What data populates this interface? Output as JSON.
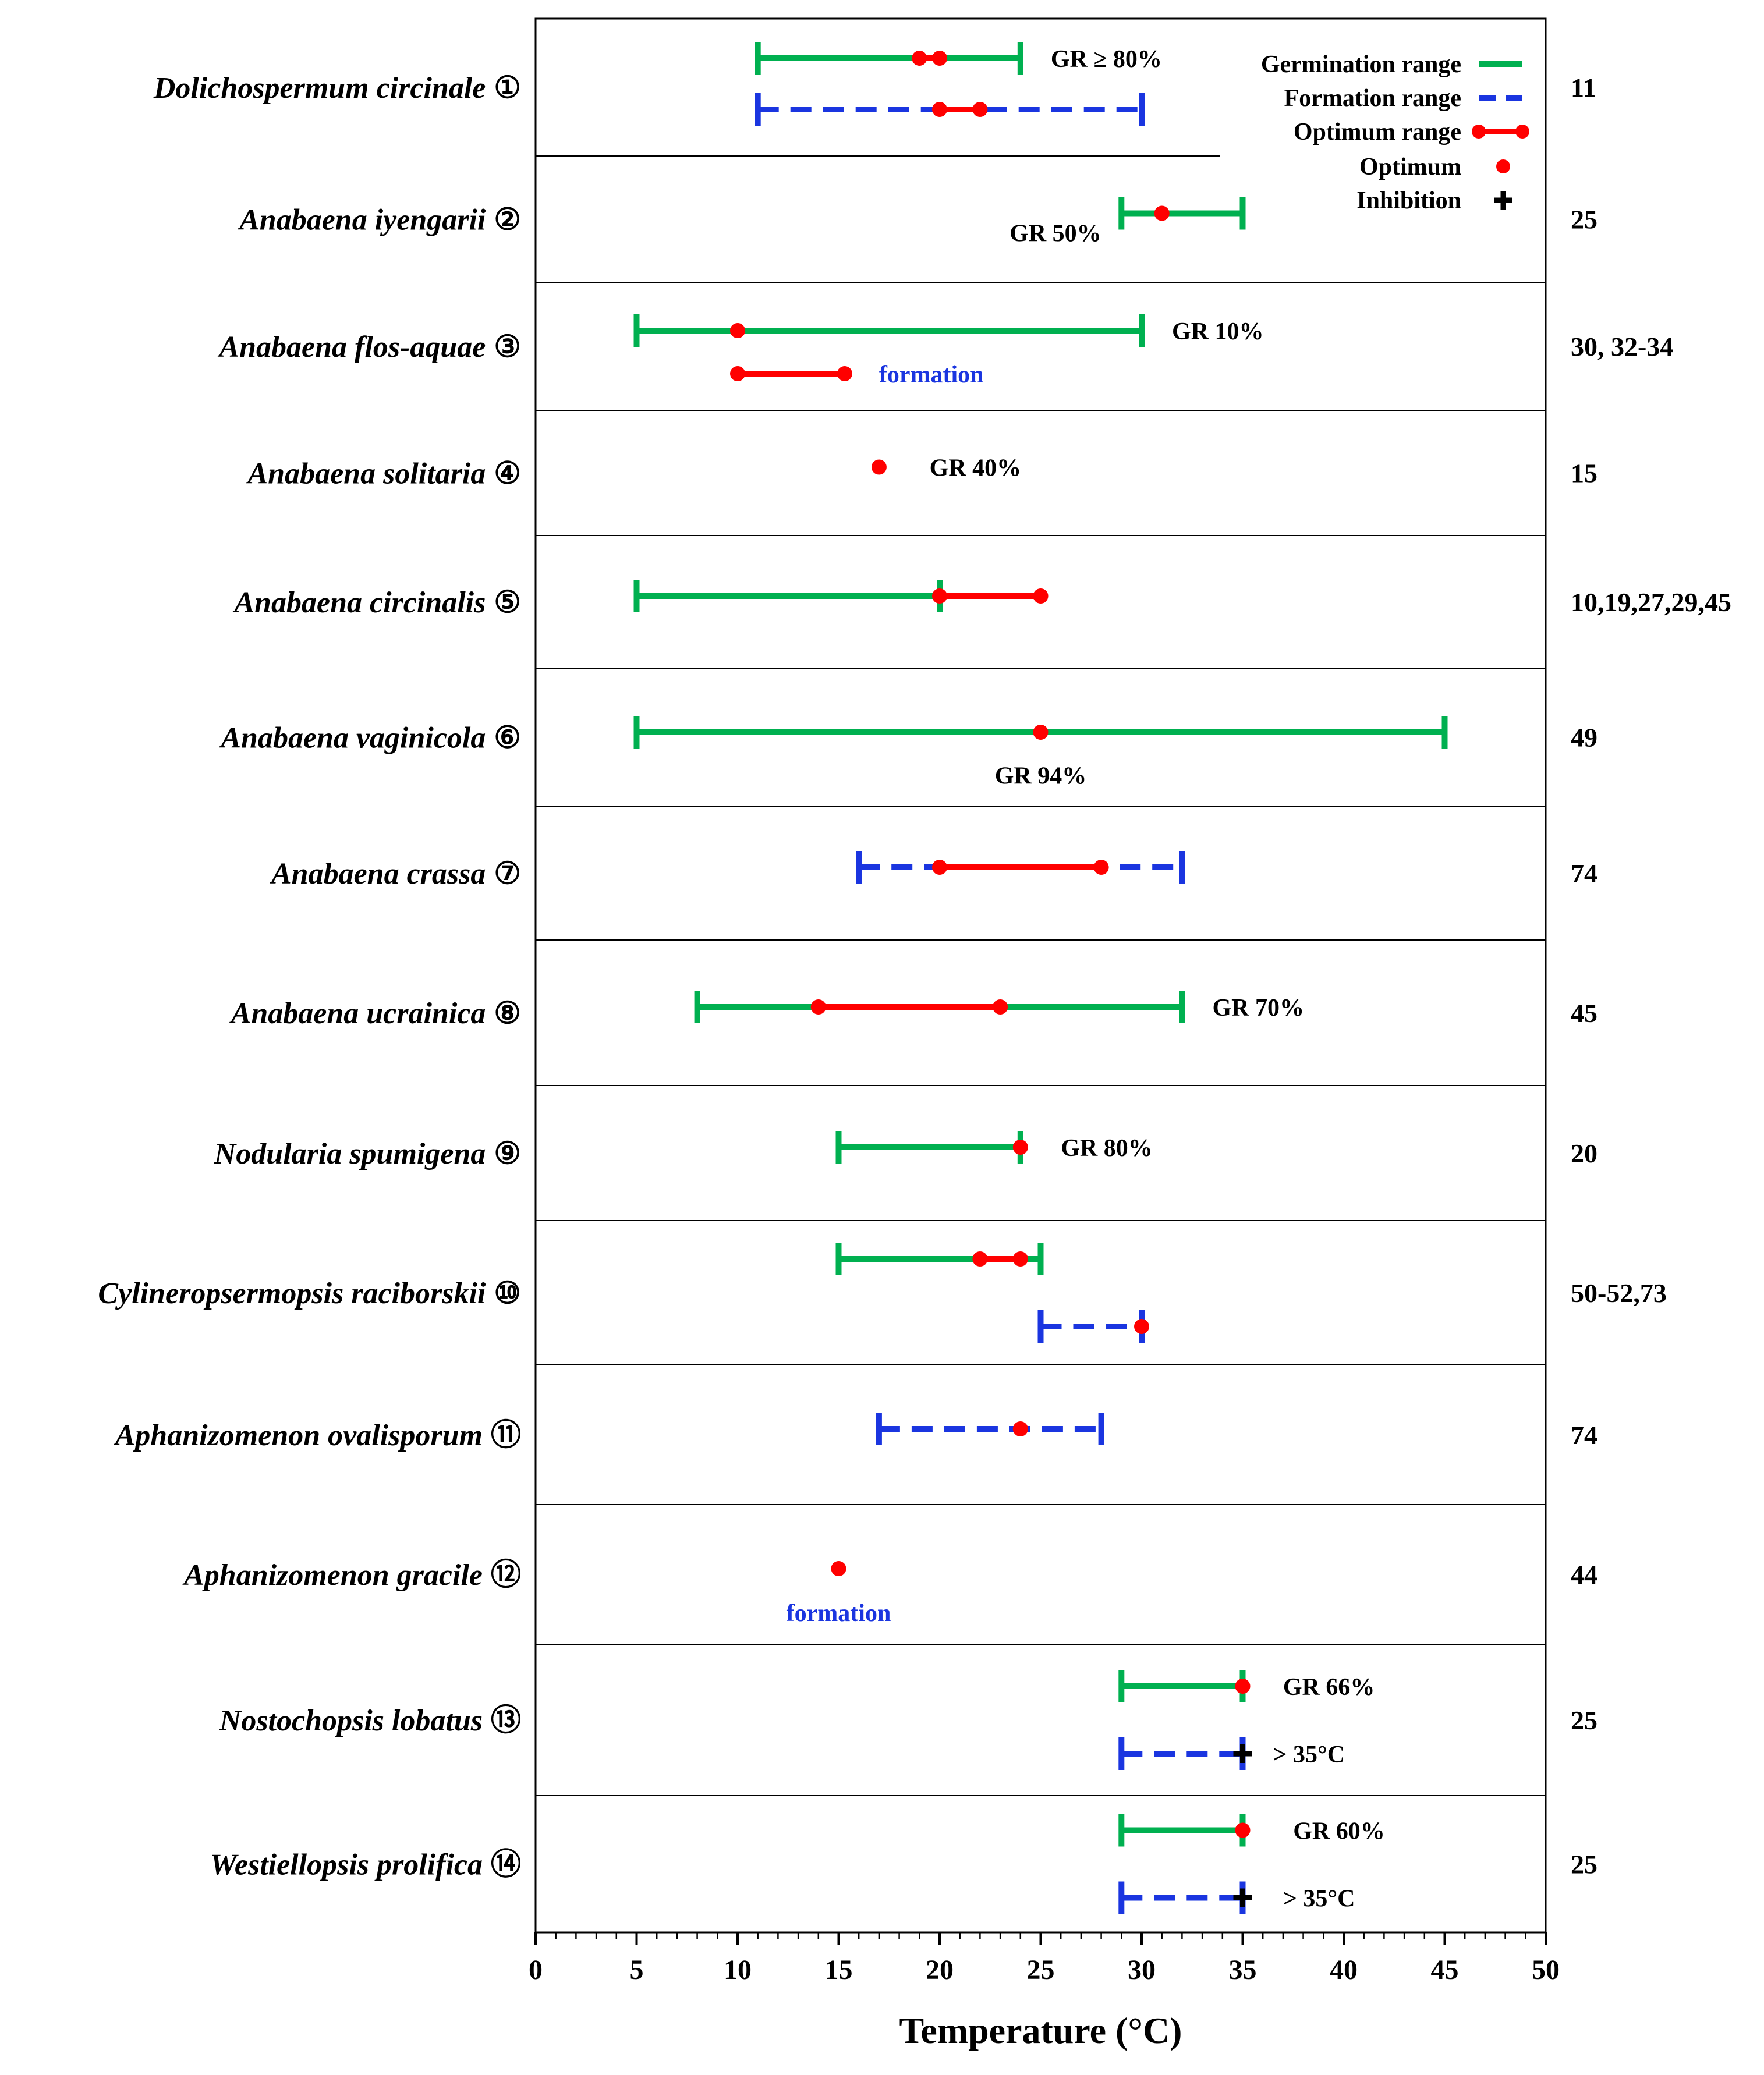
{
  "chart_data": {
    "type": "range",
    "xlabel": "Temperature (°C)",
    "xlim": [
      0,
      50
    ],
    "xticks": [
      0,
      5,
      10,
      15,
      20,
      25,
      30,
      35,
      40,
      45,
      50
    ],
    "xtick_labels": [
      "0",
      "5",
      "10",
      "15",
      "20",
      "25",
      "30",
      "35",
      "40",
      "45",
      "50"
    ],
    "colors": {
      "germination": "#00b050",
      "formation": "#1a35e0",
      "optimum": "#ff0000",
      "inhibition": "#000000"
    },
    "legend": {
      "placement": "top-right",
      "entries": [
        {
          "key": "germination",
          "label": "Germination range"
        },
        {
          "key": "formation",
          "label": "Formation range"
        },
        {
          "key": "optimum_range",
          "label": "Optimum range"
        },
        {
          "key": "optimum",
          "label": "Optimum"
        },
        {
          "key": "inhibition",
          "label": "Inhibition"
        }
      ]
    },
    "rows": [
      {
        "name": "Dolichospermum circinale",
        "marker": "①",
        "refs": "11",
        "germination": [
          11,
          24
        ],
        "formation": [
          11,
          30
        ],
        "optimum_ranges": [
          [
            19,
            20
          ],
          [
            20,
            22
          ]
        ],
        "optimum_points": [],
        "inhibition": [],
        "annotations": [
          {
            "text": "GR ≥ 80%",
            "x": 25.5,
            "line": "germination",
            "anchor": "start"
          }
        ]
      },
      {
        "name": "Anabaena iyengarii",
        "marker": "②",
        "refs": "25",
        "germination": [
          29,
          35
        ],
        "formation": null,
        "optimum_ranges": [],
        "optimum_points": [
          31
        ],
        "inhibition": [],
        "annotations": [
          {
            "text": "GR 50%",
            "x": 28,
            "line": "germination",
            "anchor": "end"
          }
        ]
      },
      {
        "name": "Anabaena flos-aquae",
        "marker": "③",
        "refs": "30, 32-34",
        "germination": [
          5,
          30
        ],
        "formation": null,
        "optimum_ranges": [
          [
            10,
            15.3
          ]
        ],
        "optimum_points": [
          10
        ],
        "inhibition": [],
        "annotations": [
          {
            "text": "GR 10%",
            "x": 31.5,
            "line": "germination",
            "anchor": "start"
          },
          {
            "text": "formation",
            "x": 17,
            "line": "optimum",
            "anchor": "start",
            "style": "formation"
          }
        ]
      },
      {
        "name": "Anabaena solitaria",
        "marker": "④",
        "refs": "15",
        "germination": null,
        "formation": null,
        "optimum_ranges": [],
        "optimum_points": [
          17
        ],
        "inhibition": [],
        "annotations": [
          {
            "text": "GR 40%",
            "x": 19.5,
            "line": "single",
            "anchor": "start"
          }
        ]
      },
      {
        "name": "Anabaena circinalis",
        "marker": "⑤",
        "refs": "10,19,27,29,45",
        "germination": [
          5,
          20
        ],
        "formation": null,
        "optimum_ranges": [
          [
            20,
            25
          ]
        ],
        "optimum_points": [],
        "inhibition": [],
        "annotations": []
      },
      {
        "name": "Anabaena vaginicola",
        "marker": "⑥",
        "refs": "49",
        "germination": [
          5,
          45
        ],
        "formation": null,
        "optimum_ranges": [],
        "optimum_points": [
          25
        ],
        "inhibition": [],
        "annotations": [
          {
            "text": "GR 94%",
            "x": 25,
            "line": "below",
            "anchor": "middle"
          }
        ]
      },
      {
        "name": "Anabaena crassa",
        "marker": "⑦",
        "refs": "74",
        "germination": null,
        "formation": [
          16,
          32
        ],
        "optimum_ranges": [
          [
            20,
            28
          ]
        ],
        "optimum_points": [],
        "inhibition": [],
        "annotations": []
      },
      {
        "name": "Anabaena ucrainica",
        "marker": "⑧",
        "refs": "45",
        "germination": [
          8,
          32
        ],
        "formation": null,
        "optimum_ranges": [
          [
            14,
            23
          ]
        ],
        "optimum_points": [],
        "inhibition": [],
        "annotations": [
          {
            "text": "GR 70%",
            "x": 33.5,
            "line": "germination",
            "anchor": "start"
          }
        ]
      },
      {
        "name": "Nodularia spumigena",
        "marker": "⑨",
        "refs": "20",
        "germination": [
          15,
          24
        ],
        "formation": null,
        "optimum_ranges": [],
        "optimum_points": [
          24
        ],
        "inhibition": [],
        "annotations": [
          {
            "text": "GR 80%",
            "x": 26,
            "line": "germination",
            "anchor": "start"
          }
        ]
      },
      {
        "name": "Cylineropsermopsis raciborskii",
        "marker": "⑩",
        "refs": "50-52,73",
        "germination": [
          15,
          25
        ],
        "formation": [
          25,
          30
        ],
        "optimum_ranges": [
          [
            22,
            24
          ]
        ],
        "optimum_points": [
          30
        ],
        "inhibition": [],
        "annotations": []
      },
      {
        "name": "Aphanizomenon ovalisporum",
        "marker": "⑪",
        "refs": "74",
        "germination": null,
        "formation": [
          17,
          28
        ],
        "optimum_ranges": [],
        "optimum_points": [
          24
        ],
        "inhibition": [],
        "annotations": []
      },
      {
        "name": "Aphanizomenon gracile",
        "marker": "⑫",
        "refs": "44",
        "germination": null,
        "formation": null,
        "optimum_ranges": [],
        "optimum_points": [
          15
        ],
        "inhibition": [],
        "annotations": [
          {
            "text": "formation",
            "x": 15,
            "line": "below",
            "anchor": "middle",
            "style": "formation"
          }
        ]
      },
      {
        "name": "Nostochopsis lobatus",
        "marker": "⑬",
        "refs": "25",
        "germination": [
          29,
          35
        ],
        "formation": [
          29,
          35
        ],
        "optimum_ranges": [],
        "optimum_points": [
          35
        ],
        "inhibition": [
          35
        ],
        "annotations": [
          {
            "text": "GR 66%",
            "x": 37,
            "line": "germination",
            "anchor": "start"
          },
          {
            "text": "> 35°C",
            "x": 36.5,
            "line": "formation",
            "anchor": "start"
          }
        ]
      },
      {
        "name": "Westiellopsis prolifica",
        "marker": "⑭",
        "refs": "25",
        "germination": [
          29,
          35
        ],
        "formation": [
          29,
          35
        ],
        "optimum_ranges": [],
        "optimum_points": [
          35
        ],
        "inhibition": [
          35
        ],
        "annotations": [
          {
            "text": "GR 60%",
            "x": 37.5,
            "line": "germination",
            "anchor": "start"
          },
          {
            "text": "> 35°C",
            "x": 37,
            "line": "formation",
            "anchor": "start"
          }
        ]
      }
    ]
  }
}
